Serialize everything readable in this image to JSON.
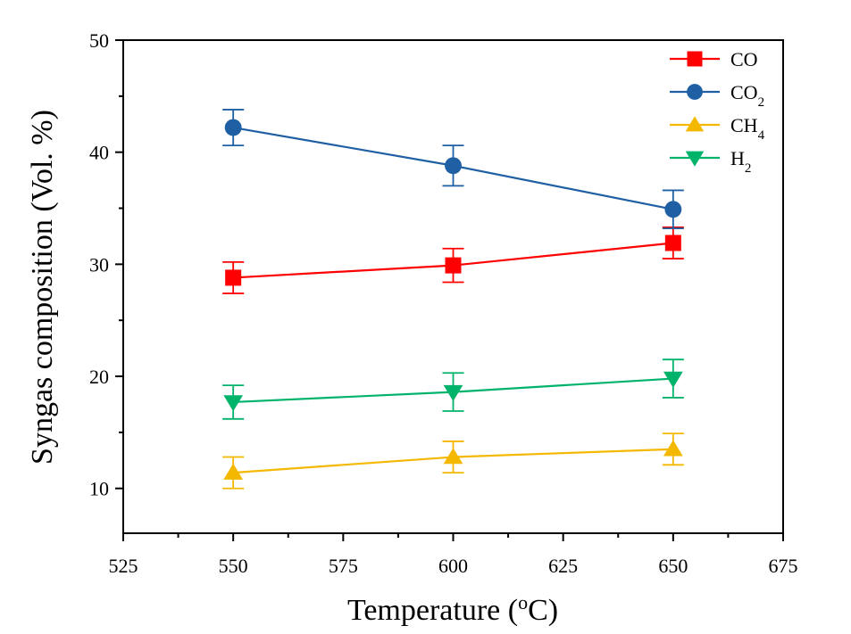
{
  "chart_data": {
    "type": "line",
    "title": "",
    "xlabel": "Temperature (",
    "xlabel_sup": "o",
    "xlabel_tail": "C)",
    "ylabel": "Syngas composition (Vol. %)",
    "xlim": [
      525,
      675
    ],
    "ylim": [
      6,
      50
    ],
    "xticks": [
      525,
      550,
      575,
      600,
      625,
      650,
      675
    ],
    "yticks": [
      10,
      20,
      30,
      40,
      50
    ],
    "grid": false,
    "legend_position": "top-right",
    "x": [
      550,
      600,
      650
    ],
    "series": [
      {
        "name": "CO",
        "name_sub": "",
        "color": "#ff0000",
        "marker": "square",
        "values": [
          28.8,
          29.9,
          31.9
        ],
        "errors": [
          1.4,
          1.5,
          1.4
        ]
      },
      {
        "name": "CO",
        "name_sub": "2",
        "color": "#1f5fa3",
        "marker": "circle",
        "values": [
          42.2,
          38.8,
          34.9
        ],
        "errors": [
          1.6,
          1.8,
          1.7
        ]
      },
      {
        "name": "CH",
        "name_sub": "4",
        "color": "#f5b800",
        "marker": "triangle-up",
        "values": [
          11.4,
          12.8,
          13.5
        ],
        "errors": [
          1.4,
          1.4,
          1.4
        ]
      },
      {
        "name": "H",
        "name_sub": "2",
        "color": "#00b36b",
        "marker": "triangle-down",
        "values": [
          17.7,
          18.6,
          19.8
        ],
        "errors": [
          1.5,
          1.7,
          1.7
        ]
      }
    ]
  }
}
